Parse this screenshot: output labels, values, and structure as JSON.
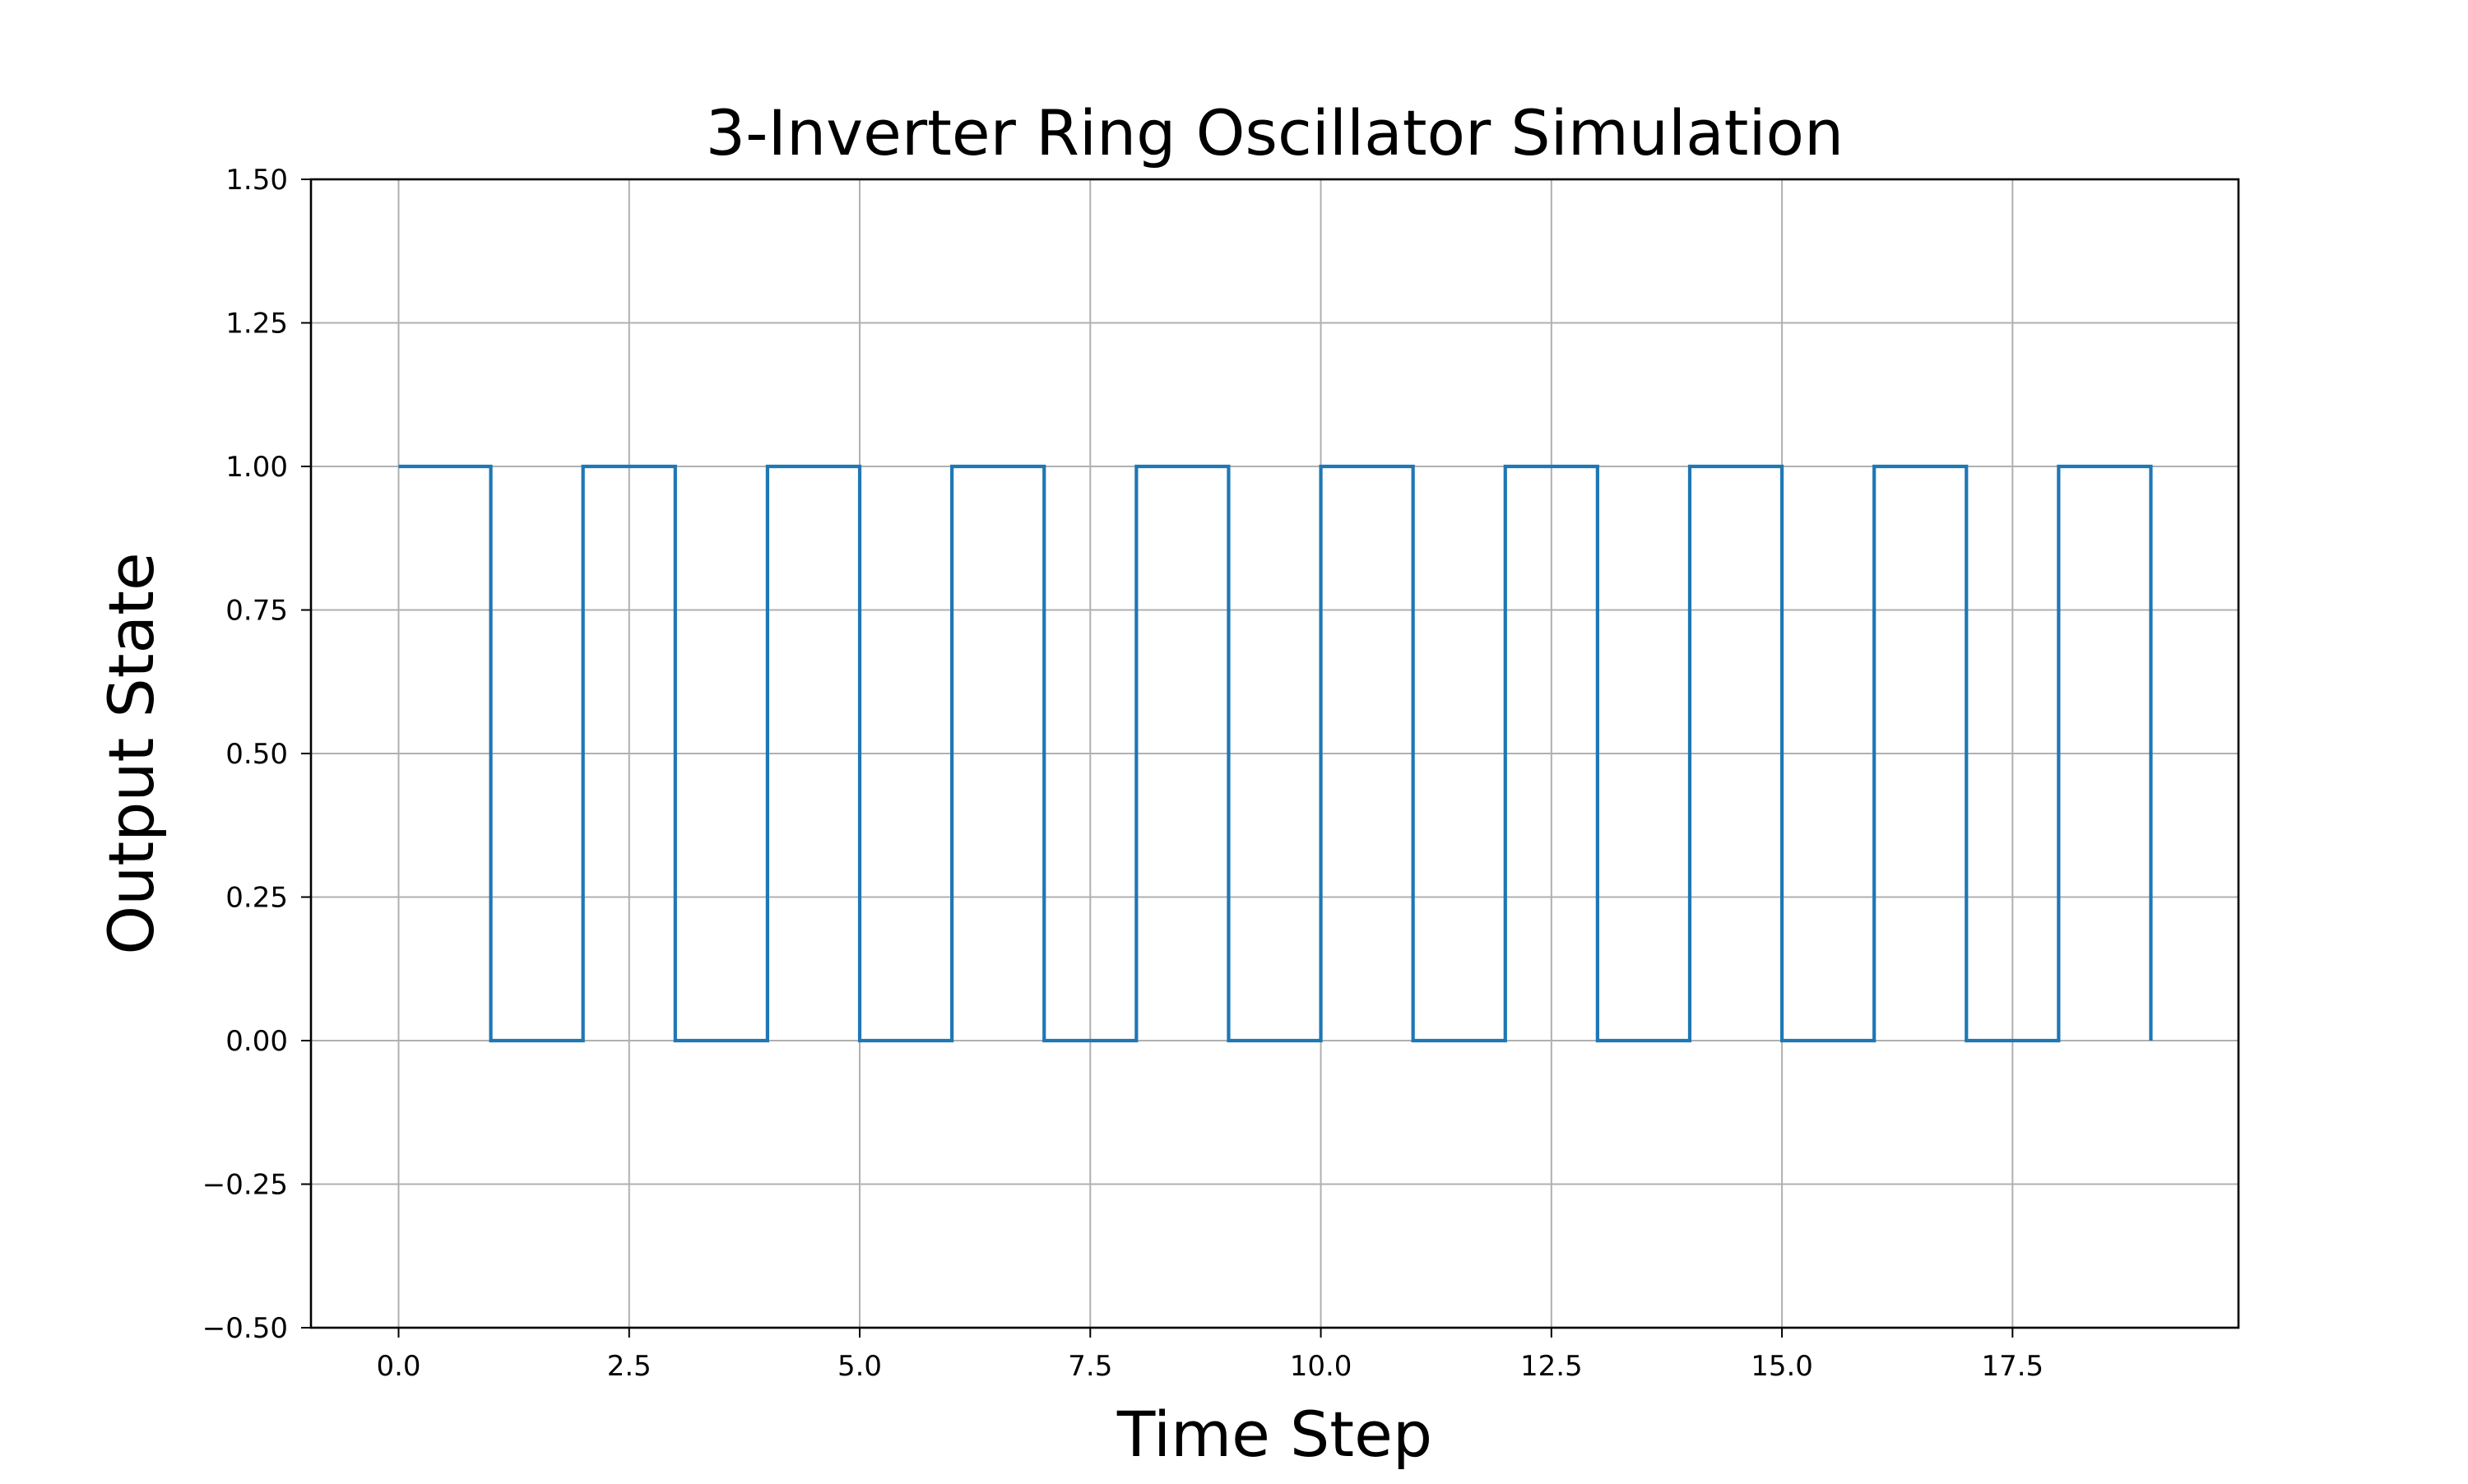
{
  "chart_data": {
    "type": "line",
    "drawstyle": "steps-post",
    "title": "3-Inverter Ring Oscillator Simulation",
    "xlabel": "Time Step",
    "ylabel": "Output State",
    "xlim": [
      -0.95,
      19.95
    ],
    "ylim": [
      -0.5,
      1.5
    ],
    "grid": true,
    "xticks": [
      0.0,
      2.5,
      5.0,
      7.5,
      10.0,
      12.5,
      15.0,
      17.5
    ],
    "xtick_labels": [
      "0.0",
      "2.5",
      "5.0",
      "7.5",
      "10.0",
      "12.5",
      "15.0",
      "17.5"
    ],
    "yticks": [
      -0.5,
      -0.25,
      0.0,
      0.25,
      0.5,
      0.75,
      1.0,
      1.25,
      1.5
    ],
    "ytick_labels": [
      "−0.50",
      "−0.25",
      "0.00",
      "0.25",
      "0.50",
      "0.75",
      "1.00",
      "1.25",
      "1.50"
    ],
    "series": [
      {
        "color": "#1f77b4",
        "x": [
          0,
          1,
          2,
          3,
          4,
          5,
          6,
          7,
          8,
          9,
          10,
          11,
          12,
          13,
          14,
          15,
          16,
          17,
          18,
          19
        ],
        "values": [
          1,
          0,
          1,
          0,
          1,
          0,
          1,
          0,
          1,
          0,
          1,
          0,
          1,
          0,
          1,
          0,
          1,
          0,
          1,
          0
        ]
      }
    ]
  }
}
